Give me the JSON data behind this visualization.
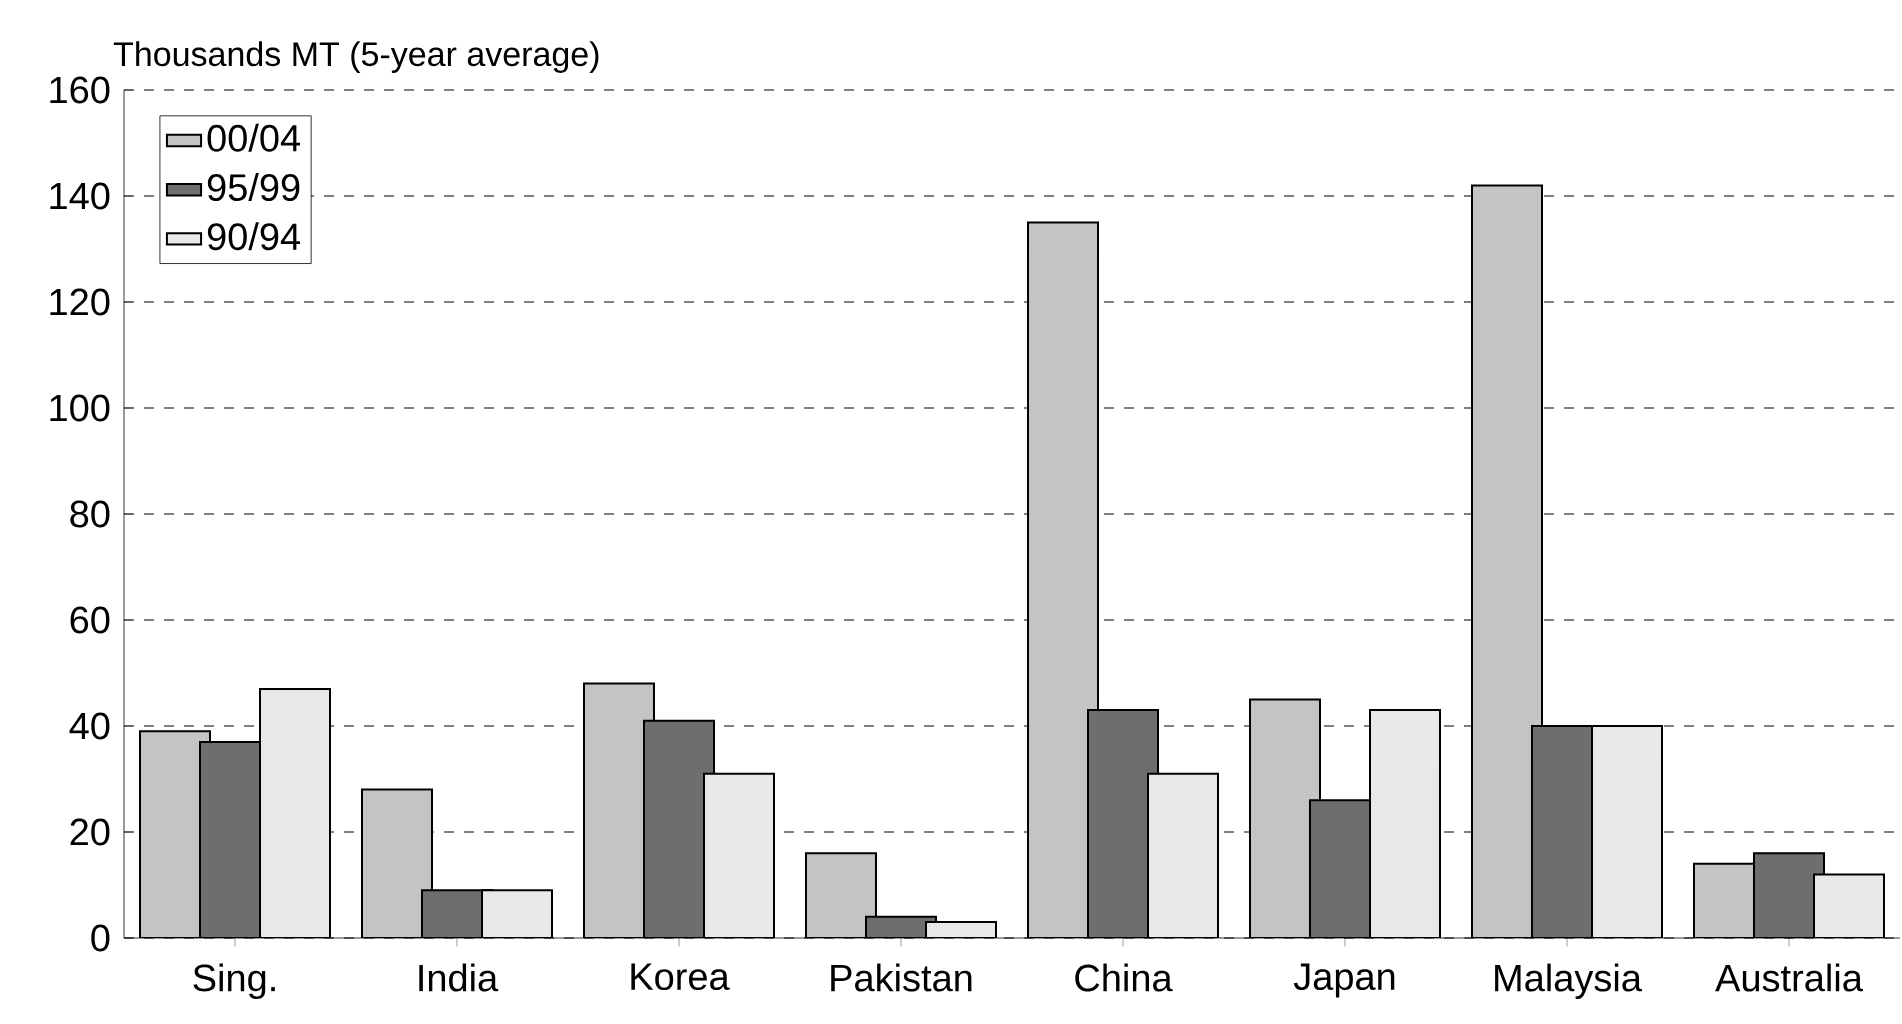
{
  "chart_data": {
    "type": "bar",
    "ylabel": "Thousands MT (5-year average)",
    "categories": [
      "Sing.",
      "India",
      "Korea",
      "Pakistan",
      "China",
      "Japan",
      "Malaysia",
      "Australia"
    ],
    "series": [
      {
        "name": "00/04",
        "color": "#c4c4c4",
        "values": [
          39,
          28,
          48,
          16,
          135,
          45,
          142,
          14
        ]
      },
      {
        "name": "95/99",
        "color": "#6e6e6e",
        "values": [
          37,
          9,
          41,
          4,
          43,
          26,
          40,
          16
        ]
      },
      {
        "name": "90/94",
        "color": "#e8e8e8",
        "values": [
          47,
          9,
          31,
          3,
          31,
          43,
          40,
          12
        ]
      }
    ],
    "ylim": [
      0,
      160
    ],
    "yticks": [
      0,
      20,
      40,
      60,
      80,
      100,
      120,
      140,
      160
    ],
    "grid": "y",
    "legend": "top left"
  }
}
